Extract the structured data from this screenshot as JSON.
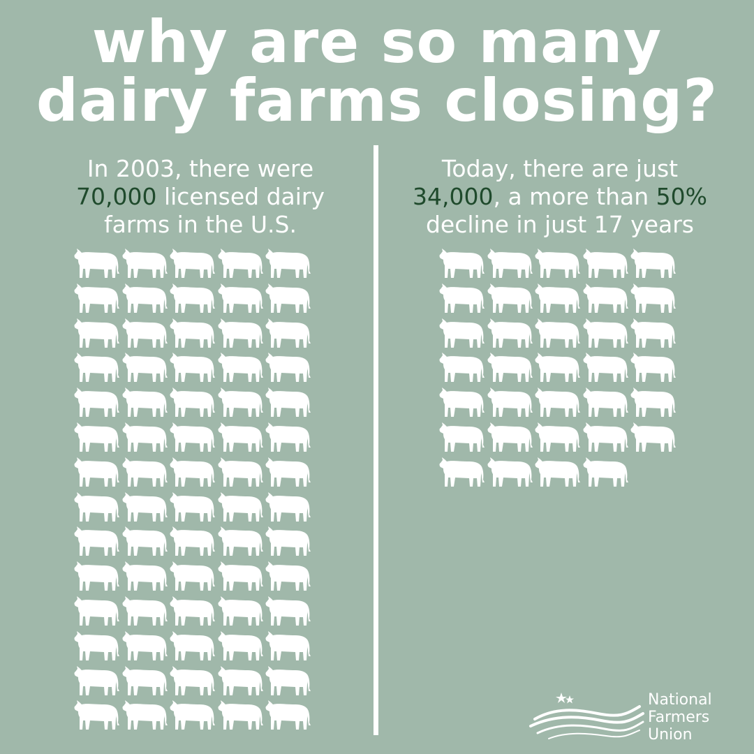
{
  "title": {
    "line1": "why are so many",
    "line2": "dairy farms closing?"
  },
  "left": {
    "line1": "In 2003, there were",
    "line2_highlight": "70,000",
    "line2_rest": " licensed dairy",
    "line3": "farms in the U.S.",
    "cow_icons": 70
  },
  "right": {
    "line1": "Today, there are just",
    "line2_highlight1": "34,000",
    "line2_mid": ", a more than ",
    "line2_highlight2": "50%",
    "line3": "decline in just 17 years",
    "cow_icons": 34
  },
  "logo": {
    "line1": "National",
    "line2": "Farmers",
    "line3": "Union"
  },
  "colors": {
    "background": "#a0b8aa",
    "text": "#ffffff",
    "highlight": "#1f4a2c"
  },
  "icons": {
    "cow": "cow-icon",
    "logo": "flag-stars-icon"
  }
}
